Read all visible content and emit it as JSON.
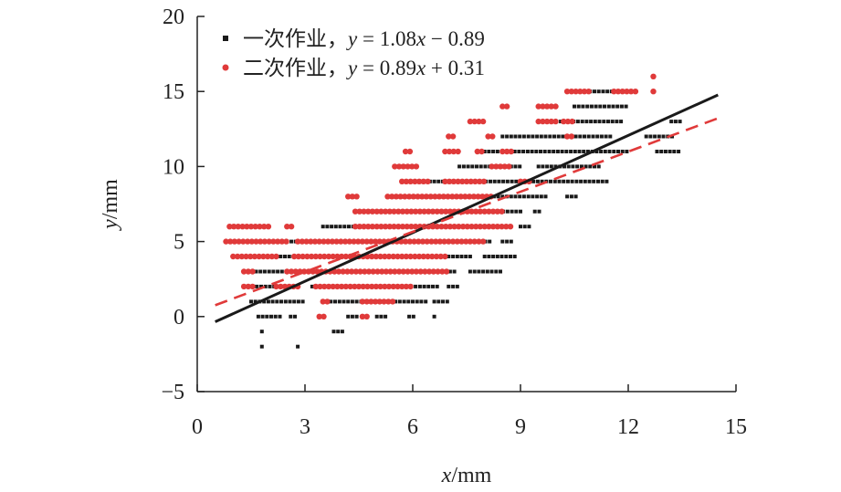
{
  "chart_data": {
    "type": "scatter",
    "xlabel": {
      "var": "x",
      "unit": "/mm"
    },
    "ylabel": {
      "var": "y",
      "unit": "/mm"
    },
    "xlim": [
      0,
      15
    ],
    "ylim": [
      -5,
      20
    ],
    "x_ticks": [
      0,
      3,
      6,
      9,
      12,
      15
    ],
    "y_ticks": [
      -5,
      0,
      5,
      10,
      15,
      20
    ],
    "x_tick_labels": [
      "0",
      "3",
      "6",
      "9",
      "12",
      "15"
    ],
    "y_tick_labels": [
      "−5",
      "0",
      "5",
      "10",
      "15",
      "20"
    ],
    "grid": false,
    "legend_position": "top-left",
    "series": [
      {
        "name": "一次作业，y = 1.08x − 0.89",
        "legend_prefix": "一次作业，",
        "legend_var": "y",
        "legend_eq": " = 1.08",
        "legend_var2": "x",
        "legend_tail": " − 0.89",
        "color": "#1a1a1a",
        "marker": "square",
        "fit": {
          "slope": 1.08,
          "intercept": -0.89,
          "x_range": [
            0.5,
            14.5
          ],
          "style": "solid"
        },
        "rows": [
          {
            "y": -2,
            "segments": [
              [
                1.8,
                1.8
              ],
              [
                2.8,
                2.8
              ]
            ]
          },
          {
            "y": -1,
            "segments": [
              [
                1.8,
                1.9
              ],
              [
                3.8,
                4.1
              ]
            ]
          },
          {
            "y": 0,
            "segments": [
              [
                1.7,
                2.3
              ],
              [
                2.6,
                2.8
              ],
              [
                3.4,
                3.6
              ],
              [
                4.2,
                4.5
              ],
              [
                5.0,
                5.3
              ],
              [
                5.9,
                6.1
              ],
              [
                6.6,
                6.7
              ]
            ]
          },
          {
            "y": 1,
            "segments": [
              [
                1.5,
                3.0
              ],
              [
                3.6,
                5.0
              ],
              [
                5.4,
                6.4
              ],
              [
                6.6,
                7.0
              ]
            ]
          },
          {
            "y": 2,
            "segments": [
              [
                1.3,
                2.8
              ],
              [
                3.2,
                6.7
              ],
              [
                7.0,
                7.3
              ]
            ]
          },
          {
            "y": 3,
            "segments": [
              [
                1.4,
                7.2
              ],
              [
                7.6,
                8.5
              ]
            ]
          },
          {
            "y": 4,
            "segments": [
              [
                1.6,
                7.6
              ],
              [
                8.0,
                8.9
              ]
            ]
          },
          {
            "y": 5,
            "segments": [
              [
                2.5,
                8.2
              ],
              [
                8.5,
                8.8
              ]
            ]
          },
          {
            "y": 6,
            "segments": [
              [
                3.5,
                8.6
              ],
              [
                9.0,
                9.3
              ]
            ]
          },
          {
            "y": 7,
            "segments": [
              [
                4.8,
                9.0
              ],
              [
                9.4,
                9.6
              ]
            ]
          },
          {
            "y": 8,
            "segments": [
              [
                5.5,
                9.8
              ],
              [
                10.3,
                10.6
              ]
            ]
          },
          {
            "y": 9,
            "segments": [
              [
                6.0,
                11.5
              ]
            ]
          },
          {
            "y": 10,
            "segments": [
              [
                7.3,
                9.0
              ],
              [
                9.5,
                11.2
              ]
            ]
          },
          {
            "y": 11,
            "segments": [
              [
                8.0,
                12.0
              ],
              [
                12.8,
                13.5
              ]
            ]
          },
          {
            "y": 12,
            "segments": [
              [
                8.5,
                11.5
              ],
              [
                12.5,
                13.3
              ]
            ]
          },
          {
            "y": 13,
            "segments": [
              [
                10.0,
                11.8
              ],
              [
                13.2,
                13.5
              ]
            ]
          },
          {
            "y": 14,
            "segments": [
              [
                10.5,
                12.0
              ]
            ]
          },
          {
            "y": 15,
            "segments": [
              [
                10.7,
                12.2
              ]
            ]
          }
        ]
      },
      {
        "name": "二次作业，y = 0.89x + 0.31",
        "legend_prefix": "二次作业，",
        "legend_var": "y",
        "legend_eq": " = 0.89",
        "legend_var2": "x",
        "legend_tail": " + 0.31",
        "color": "#e03a3a",
        "marker": "circle",
        "fit": {
          "slope": 0.89,
          "intercept": 0.31,
          "x_range": [
            0.5,
            14.5
          ],
          "style": "dashed"
        },
        "rows": [
          {
            "y": 0,
            "segments": [
              [
                3.4,
                3.6
              ],
              [
                4.6,
                4.8
              ]
            ]
          },
          {
            "y": 1,
            "segments": [
              [
                3.5,
                3.7
              ],
              [
                4.6,
                5.5
              ]
            ]
          },
          {
            "y": 2,
            "segments": [
              [
                1.3,
                1.6
              ],
              [
                2.2,
                2.8
              ],
              [
                3.3,
                6.0
              ]
            ]
          },
          {
            "y": 3,
            "segments": [
              [
                1.3,
                1.6
              ],
              [
                2.5,
                7.0
              ]
            ]
          },
          {
            "y": 4,
            "segments": [
              [
                1.0,
                2.3
              ],
              [
                2.7,
                7.0
              ]
            ]
          },
          {
            "y": 5,
            "segments": [
              [
                0.8,
                2.5
              ],
              [
                2.8,
                8.0
              ]
            ]
          },
          {
            "y": 6,
            "segments": [
              [
                0.9,
                2.0
              ],
              [
                2.5,
                2.7
              ],
              [
                4.4,
                8.8
              ]
            ]
          },
          {
            "y": 7,
            "segments": [
              [
                4.4,
                8.5
              ]
            ]
          },
          {
            "y": 8,
            "segments": [
              [
                4.2,
                4.5
              ],
              [
                5.3,
                8.2
              ]
            ]
          },
          {
            "y": 9,
            "segments": [
              [
                5.7,
                6.5
              ],
              [
                6.9,
                8.0
              ],
              [
                9.0,
                9.3
              ]
            ]
          },
          {
            "y": 10,
            "segments": [
              [
                5.5,
                6.2
              ],
              [
                8.2,
                8.7
              ]
            ]
          },
          {
            "y": 11,
            "segments": [
              [
                5.8,
                6.0
              ],
              [
                6.9,
                7.3
              ],
              [
                7.8,
                8.0
              ],
              [
                8.5,
                8.8
              ]
            ]
          },
          {
            "y": 12,
            "segments": [
              [
                7.0,
                7.2
              ],
              [
                8.1,
                8.3
              ],
              [
                10.3,
                10.5
              ]
            ]
          },
          {
            "y": 13,
            "segments": [
              [
                7.6,
                8.0
              ],
              [
                9.5,
                10.0
              ],
              [
                10.2,
                10.5
              ]
            ]
          },
          {
            "y": 14,
            "segments": [
              [
                8.5,
                8.7
              ],
              [
                9.5,
                10.0
              ]
            ]
          },
          {
            "y": 15,
            "segments": [
              [
                10.3,
                11.0
              ],
              [
                11.6,
                12.3
              ],
              [
                12.7,
                12.8
              ]
            ]
          },
          {
            "y": 16,
            "segments": [
              [
                12.7,
                12.7
              ]
            ]
          }
        ]
      }
    ]
  }
}
